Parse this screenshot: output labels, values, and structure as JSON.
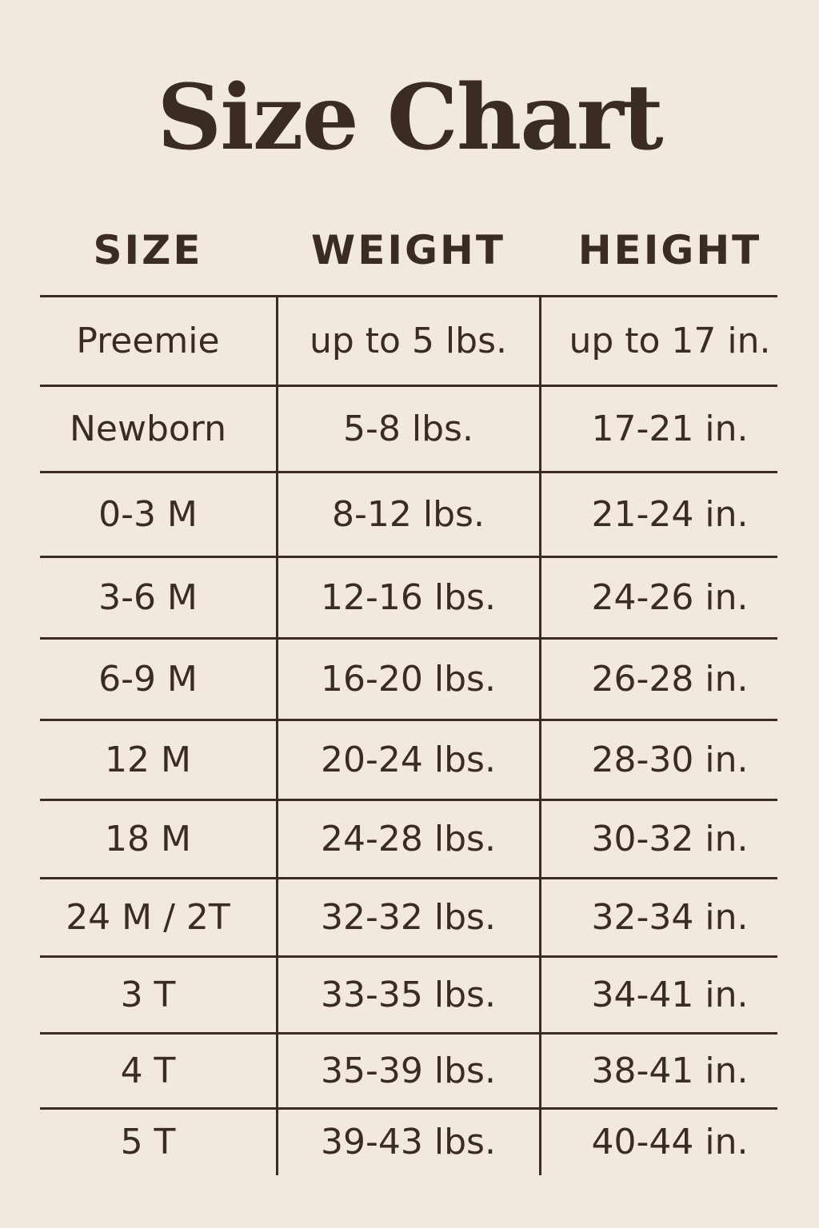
{
  "title": "Size Chart",
  "headers": [
    "SIZE",
    "WEIGHT",
    "HEIGHT"
  ],
  "rows": [
    [
      "Preemie",
      "up to 5 lbs.",
      "up to 17 in."
    ],
    [
      "Newborn",
      "5-8 lbs.",
      "17-21 in."
    ],
    [
      "0-3 M",
      "8-12 lbs.",
      "21-24 in."
    ],
    [
      "3-6 M",
      "12-16 lbs.",
      "24-26 in."
    ],
    [
      "6-9 M",
      "16-20 lbs.",
      "26-28 in."
    ],
    [
      "12 M",
      "20-24 lbs.",
      "28-30 in."
    ],
    [
      "18 M",
      "24-28 lbs.",
      "30-32 in."
    ],
    [
      "24 M / 2T",
      "32-32 lbs.",
      "32-34 in."
    ],
    [
      "3 T",
      "33-35 lbs.",
      "34-41 in."
    ],
    [
      "4 T",
      "35-39 lbs.",
      "38-41 in."
    ],
    [
      "5 T",
      "39-43 lbs.",
      "40-44 in."
    ]
  ],
  "colors": {
    "background": "#f1e9de",
    "text": "#3a2c22"
  }
}
